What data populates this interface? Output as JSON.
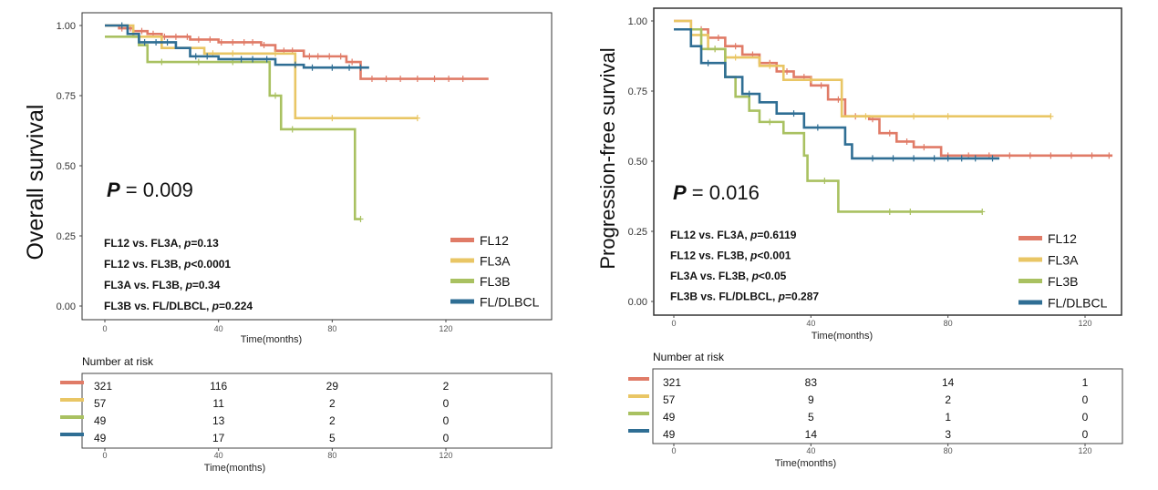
{
  "colors": {
    "FL12": "#e07b67",
    "FL3A": "#e9c665",
    "FL3B": "#a9c161",
    "FL/DLBCL": "#2f6e94"
  },
  "chart_data": [
    {
      "type": "line",
      "subtype": "kaplan-meier",
      "xlabel": "Time(months)",
      "ylabel": "Overall survival",
      "xlim": [
        0,
        140
      ],
      "ylim": [
        0,
        1.0
      ],
      "x_ticks": [
        "0",
        "40",
        "80",
        "120"
      ],
      "y_ticks": [
        "0.00",
        "0.25",
        "0.50",
        "0.75",
        "1.00"
      ],
      "p_value": {
        "label": "P",
        "value": "= 0.009"
      },
      "comparisons": [
        {
          "text": "FL12  vs.  FL3A,  ",
          "p": "p",
          "val": "=0.13"
        },
        {
          "text": "FL12  vs.  FL3B,   ",
          "p": "p",
          "val": "<0.0001"
        },
        {
          "text": "FL3A  vs.  FL3B,  ",
          "p": "p",
          "val": "=0.34"
        },
        {
          "text": "FL3B  vs.  FL/DLBCL,  ",
          "p": "p",
          "val": "=0.224"
        }
      ],
      "legend": [
        "FL12",
        "FL3A",
        "FL3B",
        "FL/DLBCL"
      ],
      "legend_position": "bottom-right",
      "series": [
        {
          "name": "FL12",
          "points": [
            [
              0,
              1
            ],
            [
              5,
              0.99
            ],
            [
              10,
              0.98
            ],
            [
              15,
              0.97
            ],
            [
              20,
              0.96
            ],
            [
              30,
              0.95
            ],
            [
              40,
              0.94
            ],
            [
              55,
              0.93
            ],
            [
              60,
              0.91
            ],
            [
              70,
              0.89
            ],
            [
              85,
              0.87
            ],
            [
              90,
              0.81
            ],
            [
              135,
              0.81
            ]
          ],
          "censor": [
            6,
            9,
            13,
            17,
            21,
            25,
            29,
            33,
            37,
            41,
            45,
            49,
            52,
            56,
            63,
            66,
            72,
            75,
            79,
            83,
            87,
            94,
            99,
            104,
            110,
            116,
            121,
            126
          ]
        },
        {
          "name": "FL3A",
          "points": [
            [
              0,
              1
            ],
            [
              10,
              0.96
            ],
            [
              20,
              0.92
            ],
            [
              35,
              0.9
            ],
            [
              67,
              0.9
            ],
            [
              67,
              0.67
            ],
            [
              110,
              0.67
            ]
          ],
          "censor": [
            12,
            38,
            45,
            60,
            80,
            110
          ]
        },
        {
          "name": "FL3B",
          "points": [
            [
              0,
              0.96
            ],
            [
              12,
              0.93
            ],
            [
              15,
              0.87
            ],
            [
              55,
              0.87
            ],
            [
              58,
              0.75
            ],
            [
              62,
              0.63
            ],
            [
              75,
              0.63
            ],
            [
              88,
              0.63
            ],
            [
              88,
              0.31
            ],
            [
              90,
              0.31
            ]
          ],
          "censor": [
            20,
            33,
            45,
            60,
            66,
            90
          ]
        },
        {
          "name": "FL/DLBCL",
          "points": [
            [
              0,
              1
            ],
            [
              8,
              0.97
            ],
            [
              12,
              0.94
            ],
            [
              25,
              0.92
            ],
            [
              30,
              0.89
            ],
            [
              40,
              0.88
            ],
            [
              60,
              0.86
            ],
            [
              70,
              0.85
            ],
            [
              93,
              0.85
            ]
          ],
          "censor": [
            6,
            14,
            18,
            22,
            32,
            36,
            48,
            52,
            57,
            67,
            73,
            80,
            86,
            90
          ]
        }
      ],
      "risk_table": {
        "title": "Number at risk",
        "x_ticks": [
          "0",
          "40",
          "80",
          "120"
        ],
        "rows": [
          {
            "name": "FL12",
            "values": [
              "321",
              "116",
              "29",
              "2"
            ]
          },
          {
            "name": "FL3A",
            "values": [
              "57",
              "11",
              "2",
              "0"
            ]
          },
          {
            "name": "FL3B",
            "values": [
              "49",
              "13",
              "2",
              "0"
            ]
          },
          {
            "name": "FL/DLBCL",
            "values": [
              "49",
              "17",
              "5",
              "0"
            ]
          }
        ]
      }
    },
    {
      "type": "line",
      "subtype": "kaplan-meier",
      "xlabel": "Time(months)",
      "ylabel": "Progression-free survival",
      "xlim": [
        0,
        130
      ],
      "ylim": [
        0,
        1.0
      ],
      "x_ticks": [
        "0",
        "40",
        "80",
        "120"
      ],
      "y_ticks": [
        "0.00",
        "0.25",
        "0.50",
        "0.75",
        "1.00"
      ],
      "p_value": {
        "label": "P",
        "value": "= 0.016"
      },
      "comparisons": [
        {
          "text": "FL12  vs.  FL3A,  ",
          "p": "p",
          "val": "=0.6119"
        },
        {
          "text": "FL12  vs.  FL3B,  ",
          "p": "p",
          "val": "<0.001"
        },
        {
          "text": "FL3A  vs.  FL3B,  ",
          "p": "p",
          "val": "<0.05"
        },
        {
          "text": "FL3B  vs.  FL/DLBCL,  ",
          "p": "p",
          "val": "=0.287"
        }
      ],
      "legend": [
        "FL12",
        "FL3A",
        "FL3B",
        "FL/DLBCL"
      ],
      "legend_position": "bottom-right",
      "series": [
        {
          "name": "FL12",
          "points": [
            [
              0,
              1
            ],
            [
              5,
              0.97
            ],
            [
              10,
              0.94
            ],
            [
              15,
              0.91
            ],
            [
              20,
              0.88
            ],
            [
              25,
              0.85
            ],
            [
              30,
              0.82
            ],
            [
              35,
              0.8
            ],
            [
              40,
              0.77
            ],
            [
              45,
              0.72
            ],
            [
              50,
              0.66
            ],
            [
              57,
              0.65
            ],
            [
              60,
              0.6
            ],
            [
              65,
              0.57
            ],
            [
              70,
              0.55
            ],
            [
              78,
              0.55
            ],
            [
              78,
              0.52
            ],
            [
              128,
              0.52
            ]
          ],
          "censor": [
            8,
            13,
            18,
            23,
            28,
            33,
            38,
            43,
            48,
            53,
            58,
            63,
            68,
            73,
            80,
            86,
            92,
            98,
            104,
            110,
            116,
            122,
            127
          ]
        },
        {
          "name": "FL3A",
          "points": [
            [
              0,
              1
            ],
            [
              5,
              0.95
            ],
            [
              10,
              0.9
            ],
            [
              15,
              0.87
            ],
            [
              20,
              0.87
            ],
            [
              25,
              0.84
            ],
            [
              32,
              0.84
            ],
            [
              32,
              0.79
            ],
            [
              49,
              0.79
            ],
            [
              49,
              0.66
            ],
            [
              110,
              0.66
            ]
          ],
          "censor": [
            12,
            18,
            28,
            40,
            56,
            70,
            80,
            110
          ]
        },
        {
          "name": "FL3B",
          "points": [
            [
              0,
              0.97
            ],
            [
              8,
              0.9
            ],
            [
              15,
              0.8
            ],
            [
              18,
              0.73
            ],
            [
              22,
              0.68
            ],
            [
              25,
              0.64
            ],
            [
              30,
              0.64
            ],
            [
              32,
              0.6
            ],
            [
              38,
              0.6
            ],
            [
              38,
              0.52
            ],
            [
              39,
              0.43
            ],
            [
              43,
              0.43
            ],
            [
              48,
              0.32
            ],
            [
              90,
              0.32
            ]
          ],
          "censor": [
            12,
            28,
            44,
            63,
            69,
            90
          ]
        },
        {
          "name": "FL/DLBCL",
          "points": [
            [
              0,
              0.97
            ],
            [
              5,
              0.91
            ],
            [
              8,
              0.85
            ],
            [
              15,
              0.8
            ],
            [
              20,
              0.74
            ],
            [
              25,
              0.71
            ],
            [
              30,
              0.67
            ],
            [
              38,
              0.67
            ],
            [
              38,
              0.62
            ],
            [
              45,
              0.62
            ],
            [
              50,
              0.56
            ],
            [
              52,
              0.51
            ],
            [
              95,
              0.51
            ]
          ],
          "censor": [
            10,
            22,
            35,
            42,
            58,
            64,
            70,
            76,
            80,
            84,
            88,
            93
          ]
        }
      ],
      "risk_table": {
        "title": "Number at risk",
        "x_ticks": [
          "0",
          "40",
          "80",
          "120"
        ],
        "rows": [
          {
            "name": "FL12",
            "values": [
              "321",
              "83",
              "14",
              "1"
            ]
          },
          {
            "name": "FL3A",
            "values": [
              "57",
              "9",
              "2",
              "0"
            ]
          },
          {
            "name": "FL3B",
            "values": [
              "49",
              "5",
              "1",
              "0"
            ]
          },
          {
            "name": "FL/DLBCL",
            "values": [
              "49",
              "14",
              "3",
              "0"
            ]
          }
        ]
      }
    }
  ]
}
